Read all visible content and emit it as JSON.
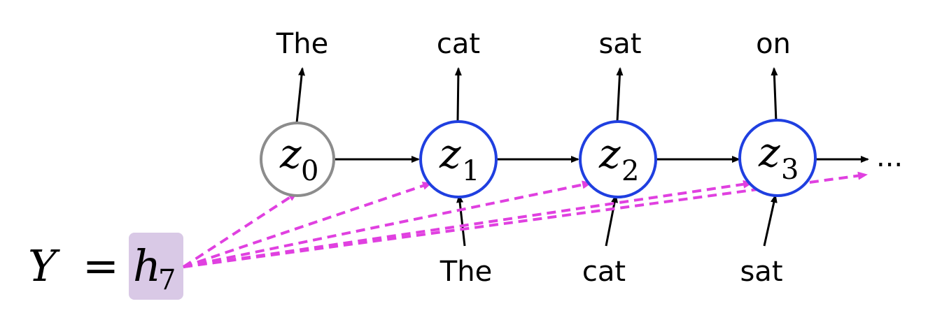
{
  "encoder": {
    "y_symbol": "Y",
    "equals": "=",
    "h_symbol": "h",
    "h_subscript": "7",
    "highlight_color": "#d9c9e6"
  },
  "nodes": [
    {
      "symbol": "z",
      "subscript": "0",
      "border_color": "#8c8c8c"
    },
    {
      "symbol": "z",
      "subscript": "1",
      "border_color": "#1f3fe0"
    },
    {
      "symbol": "z",
      "subscript": "2",
      "border_color": "#1f3fe0"
    },
    {
      "symbol": "z",
      "subscript": "3",
      "border_color": "#1f3fe0"
    }
  ],
  "outputs": [
    "The",
    "cat",
    "sat",
    "on"
  ],
  "inputs": [
    "The",
    "cat",
    "sat"
  ],
  "continuation": "...",
  "attention_color": "#e040e0"
}
